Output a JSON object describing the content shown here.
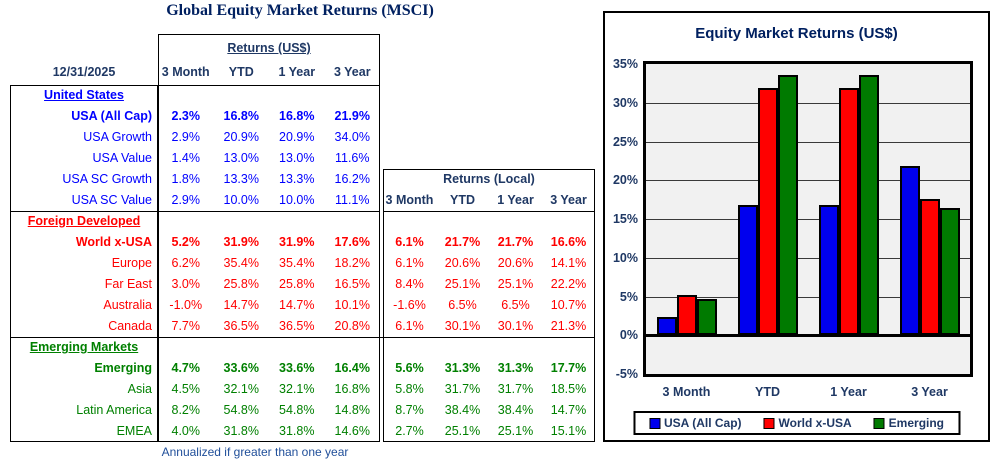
{
  "page": {
    "title": "Global Equity Market Returns (MSCI)",
    "footnote": "Annualized if greater than one year"
  },
  "table": {
    "as_of_date": "12/31/2025",
    "usd_header": "Returns (US$)",
    "local_header": "Returns (Local)",
    "period_headers": [
      "3 Month",
      "YTD",
      "1 Year",
      "3 Year"
    ],
    "sections": [
      {
        "name": "United States",
        "color": "#0000FF",
        "rows": [
          {
            "label": "USA (All Cap)",
            "bold": true,
            "usd": [
              "2.3%",
              "16.8%",
              "16.8%",
              "21.9%"
            ],
            "local": null
          },
          {
            "label": "USA Growth",
            "bold": false,
            "usd": [
              "2.9%",
              "20.9%",
              "20.9%",
              "34.0%"
            ],
            "local": null
          },
          {
            "label": "USA Value",
            "bold": false,
            "usd": [
              "1.4%",
              "13.0%",
              "13.0%",
              "11.6%"
            ],
            "local": null
          },
          {
            "label": "USA SC Growth",
            "bold": false,
            "usd": [
              "1.8%",
              "13.3%",
              "13.3%",
              "16.2%"
            ],
            "local": null
          },
          {
            "label": "USA SC Value",
            "bold": false,
            "usd": [
              "2.9%",
              "10.0%",
              "10.0%",
              "11.1%"
            ],
            "local": null
          }
        ]
      },
      {
        "name": "Foreign Developed",
        "color": "#FF0000",
        "rows": [
          {
            "label": "World x-USA",
            "bold": true,
            "usd": [
              "5.2%",
              "31.9%",
              "31.9%",
              "17.6%"
            ],
            "local": [
              "6.1%",
              "21.7%",
              "21.7%",
              "16.6%"
            ]
          },
          {
            "label": "Europe",
            "bold": false,
            "usd": [
              "6.2%",
              "35.4%",
              "35.4%",
              "18.2%"
            ],
            "local": [
              "6.1%",
              "20.6%",
              "20.6%",
              "14.1%"
            ]
          },
          {
            "label": "Far East",
            "bold": false,
            "usd": [
              "3.0%",
              "25.8%",
              "25.8%",
              "16.5%"
            ],
            "local": [
              "8.4%",
              "25.1%",
              "25.1%",
              "22.2%"
            ]
          },
          {
            "label": "Australia",
            "bold": false,
            "usd": [
              "-1.0%",
              "14.7%",
              "14.7%",
              "10.1%"
            ],
            "local": [
              "-1.6%",
              "6.5%",
              "6.5%",
              "10.7%"
            ]
          },
          {
            "label": "Canada",
            "bold": false,
            "usd": [
              "7.7%",
              "36.5%",
              "36.5%",
              "20.8%"
            ],
            "local": [
              "6.1%",
              "30.1%",
              "30.1%",
              "21.3%"
            ]
          }
        ]
      },
      {
        "name": "Emerging Markets",
        "color": "#008000",
        "rows": [
          {
            "label": "Emerging",
            "bold": true,
            "usd": [
              "4.7%",
              "33.6%",
              "33.6%",
              "16.4%"
            ],
            "local": [
              "5.6%",
              "31.3%",
              "31.3%",
              "17.7%"
            ]
          },
          {
            "label": "Asia",
            "bold": false,
            "usd": [
              "4.5%",
              "32.1%",
              "32.1%",
              "16.8%"
            ],
            "local": [
              "5.8%",
              "31.7%",
              "31.7%",
              "18.5%"
            ]
          },
          {
            "label": "Latin America",
            "bold": false,
            "usd": [
              "8.2%",
              "54.8%",
              "54.8%",
              "14.8%"
            ],
            "local": [
              "8.7%",
              "38.4%",
              "38.4%",
              "14.7%"
            ]
          },
          {
            "label": "EMEA",
            "bold": false,
            "usd": [
              "4.0%",
              "31.8%",
              "31.8%",
              "14.6%"
            ],
            "local": [
              "2.7%",
              "25.1%",
              "25.1%",
              "15.1%"
            ]
          }
        ]
      }
    ]
  },
  "chart_data": {
    "type": "bar",
    "title": "Equity Market Returns (US$)",
    "categories": [
      "3 Month",
      "YTD",
      "1 Year",
      "3 Year"
    ],
    "series": [
      {
        "name": "USA (All Cap)",
        "color": "#0000EE",
        "values": [
          2.3,
          16.8,
          16.8,
          21.9
        ]
      },
      {
        "name": "World x-USA",
        "color": "#FF0000",
        "values": [
          5.2,
          31.9,
          31.9,
          17.6
        ]
      },
      {
        "name": "Emerging",
        "color": "#007A00",
        "values": [
          4.7,
          33.6,
          33.6,
          16.4
        ]
      }
    ],
    "ylim": [
      -5,
      35
    ],
    "ytick_step": 5,
    "ytick_suffix": "%",
    "grid": true,
    "legend_position": "bottom",
    "plot_bg": "#F1F1F1"
  }
}
